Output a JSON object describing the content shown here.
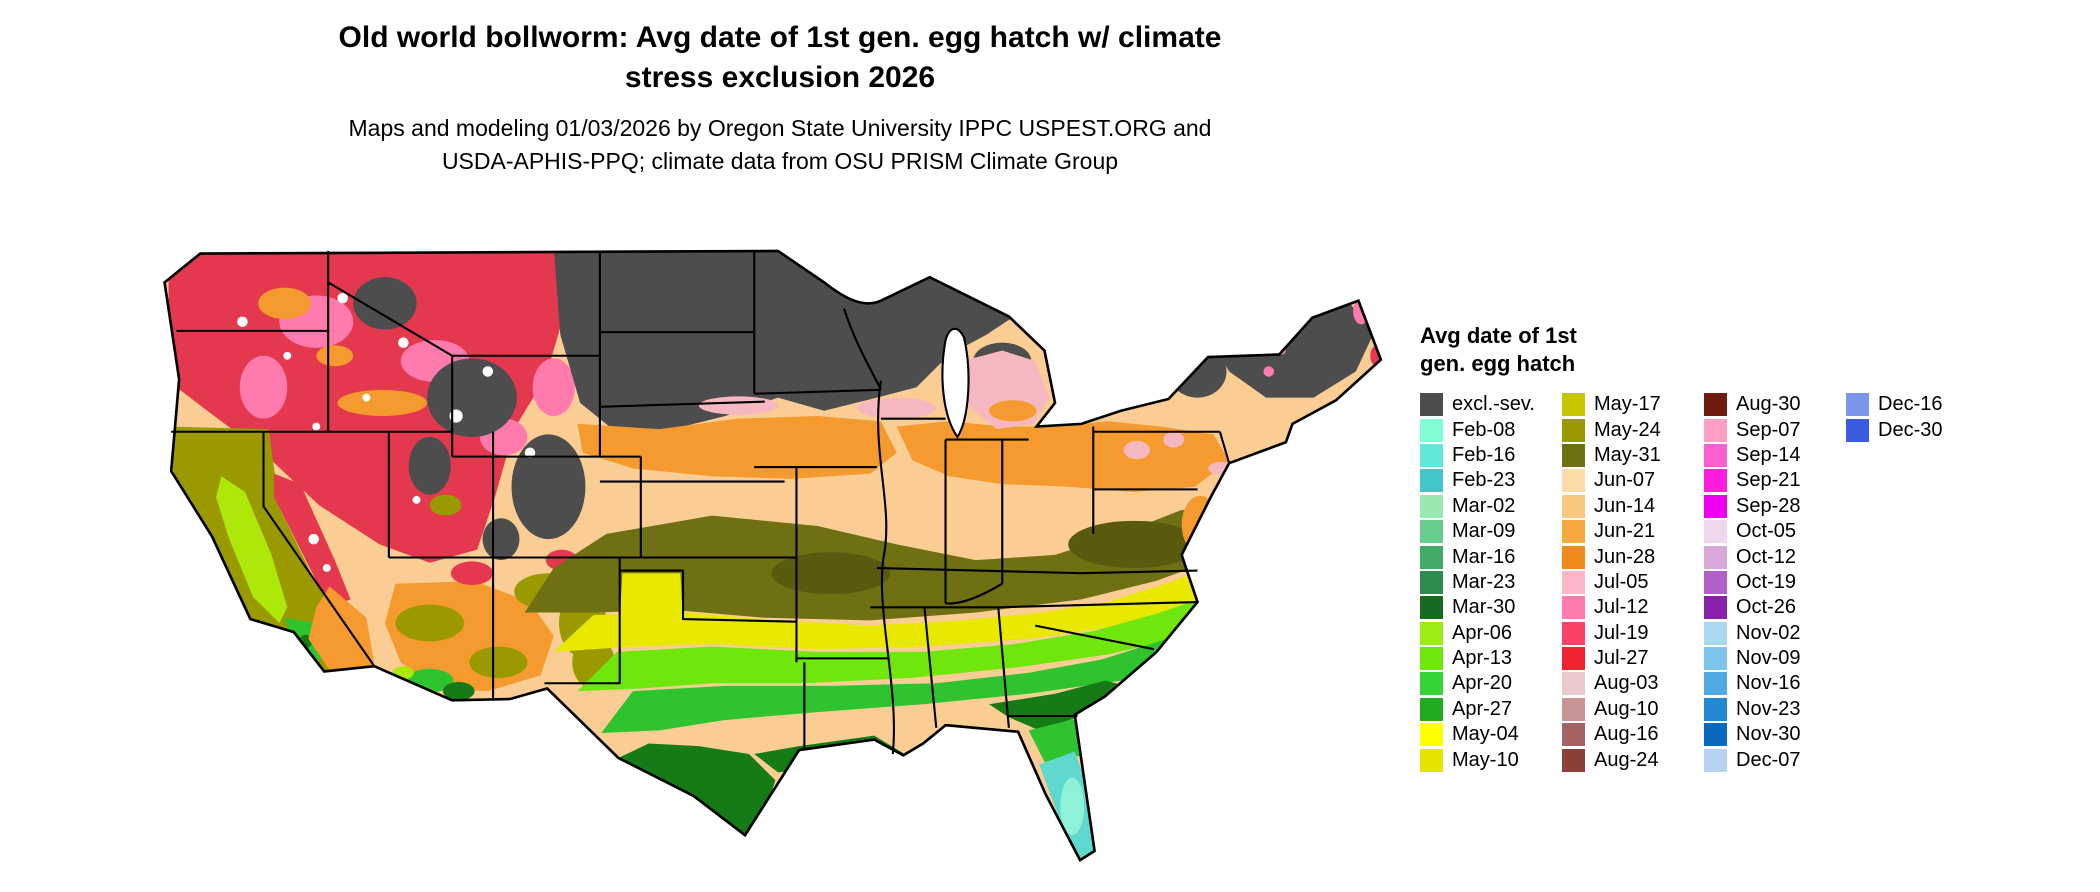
{
  "header": {
    "title1": "Old world bollworm: Avg date of 1st gen. egg hatch w/ climate",
    "title2": "stress exclusion 2026",
    "sub1": "Maps and modeling 01/03/2026 by Oregon State University IPPC USPEST.ORG and",
    "sub2": "USDA-APHIS-PPQ; climate data from OSU PRISM Climate Group"
  },
  "legend": {
    "title": [
      "Avg date of 1st",
      "gen. egg hatch"
    ],
    "columns": [
      [
        {
          "label": "excl.-sev.",
          "color": "#4D4D4D"
        },
        {
          "label": "Feb-08",
          "color": "#80FFD4"
        },
        {
          "label": "Feb-16",
          "color": "#62E8D8"
        },
        {
          "label": "Feb-23",
          "color": "#40C8C8"
        },
        {
          "label": "Mar-02",
          "color": "#98E8B0"
        },
        {
          "label": "Mar-09",
          "color": "#68CC8E"
        },
        {
          "label": "Mar-16",
          "color": "#40AA66"
        },
        {
          "label": "Mar-23",
          "color": "#2E8B50"
        },
        {
          "label": "Mar-30",
          "color": "#156B22"
        },
        {
          "label": "Apr-06",
          "color": "#9AEC12"
        },
        {
          "label": "Apr-13",
          "color": "#6FE60C"
        },
        {
          "label": "Apr-20",
          "color": "#35D435"
        },
        {
          "label": "Apr-27",
          "color": "#20AC20"
        },
        {
          "label": "May-04",
          "color": "#FFFF00"
        },
        {
          "label": "May-10",
          "color": "#E4E400"
        }
      ],
      [
        {
          "label": "May-17",
          "color": "#C6C600"
        },
        {
          "label": "May-24",
          "color": "#9A9A00"
        },
        {
          "label": "May-31",
          "color": "#6F6F14"
        },
        {
          "label": "Jun-07",
          "color": "#FBDCA8"
        },
        {
          "label": "Jun-14",
          "color": "#F8C87E"
        },
        {
          "label": "Jun-21",
          "color": "#F7A83F"
        },
        {
          "label": "Jun-28",
          "color": "#F08A18"
        },
        {
          "label": "Jul-05",
          "color": "#FFB6C8"
        },
        {
          "label": "Jul-12",
          "color": "#FF7BAE"
        },
        {
          "label": "Jul-19",
          "color": "#FF4066"
        },
        {
          "label": "Jul-27",
          "color": "#F22330"
        },
        {
          "label": "Aug-03",
          "color": "#EACACA"
        },
        {
          "label": "Aug-10",
          "color": "#C89494"
        },
        {
          "label": "Aug-16",
          "color": "#A66363"
        },
        {
          "label": "Aug-24",
          "color": "#8A4038"
        }
      ],
      [
        {
          "label": "Aug-30",
          "color": "#6E1A0E"
        },
        {
          "label": "Sep-07",
          "color": "#FF9EC4"
        },
        {
          "label": "Sep-14",
          "color": "#FF5FD0"
        },
        {
          "label": "Sep-21",
          "color": "#FF1EDE"
        },
        {
          "label": "Sep-28",
          "color": "#EE00EE"
        },
        {
          "label": "Oct-05",
          "color": "#EED8EE"
        },
        {
          "label": "Oct-12",
          "color": "#D8A8D8"
        },
        {
          "label": "Oct-19",
          "color": "#B060C8"
        },
        {
          "label": "Oct-26",
          "color": "#8822AA"
        },
        {
          "label": "Nov-02",
          "color": "#AAD8F0"
        },
        {
          "label": "Nov-09",
          "color": "#7CC4EC"
        },
        {
          "label": "Nov-16",
          "color": "#4FAAE2"
        },
        {
          "label": "Nov-23",
          "color": "#2288D4"
        },
        {
          "label": "Nov-30",
          "color": "#0A6ABE"
        },
        {
          "label": "Dec-07",
          "color": "#B8D2F2"
        }
      ],
      [
        {
          "label": "Dec-16",
          "color": "#7C96EC"
        },
        {
          "label": "Dec-30",
          "color": "#3C5CE0"
        }
      ]
    ]
  },
  "map": {
    "fills": {
      "base_jun": "#FACD94",
      "orange": "#F49A2E",
      "gray": "#4D4D4D",
      "red": "#E3384E",
      "pink": "#FF7BAE",
      "salmon": "#F5B8C0",
      "white": "#FFFFFF",
      "olive_band": "#6F6F14",
      "olive_dark": "#5A5A0E",
      "olive_med": "#9A9A00",
      "yellow": "#E9E900",
      "chartreuse": "#AEE80A",
      "green_bright": "#6FE60C",
      "green_mid": "#2FC42F",
      "green_dark": "#167A16",
      "teal": "#5FD8CE",
      "aquamarine": "#8FF2D8",
      "border": "#000000"
    }
  }
}
